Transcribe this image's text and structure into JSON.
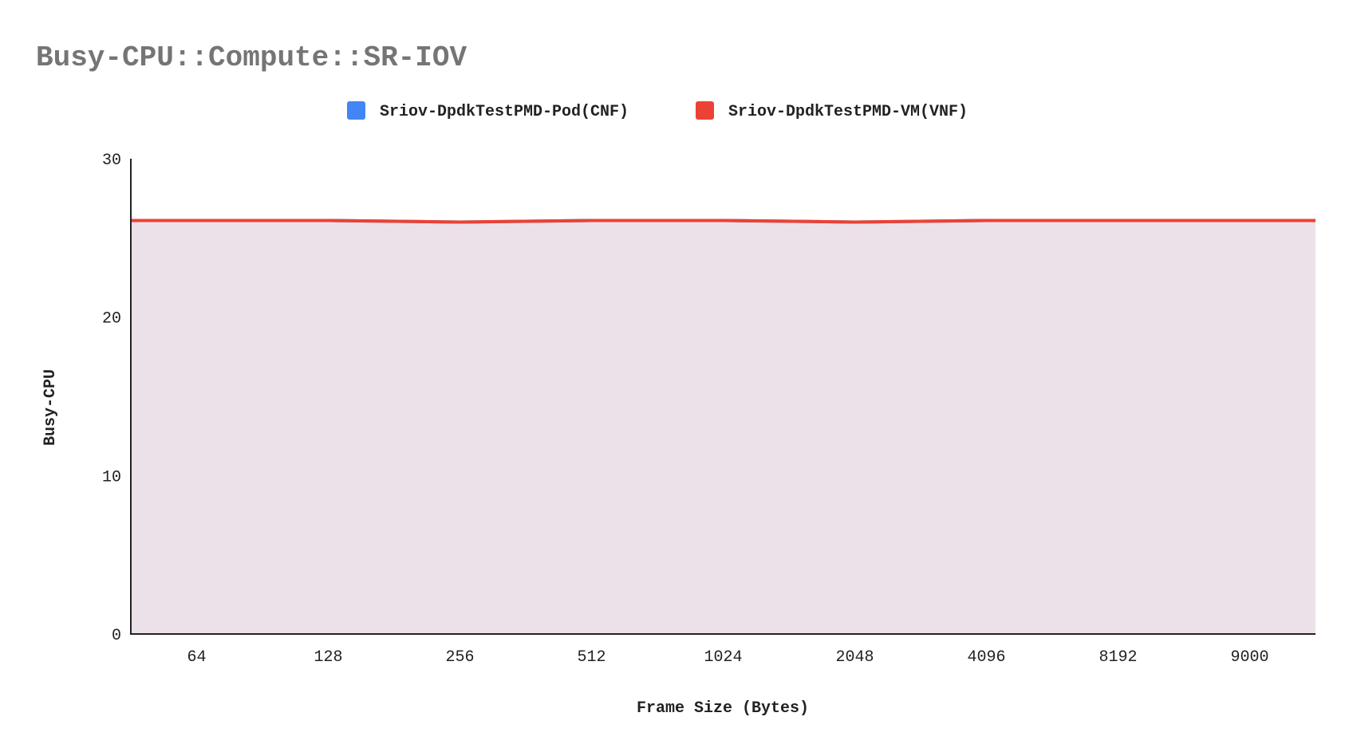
{
  "chart_data": {
    "type": "area",
    "title": "Busy-CPU::Compute::SR-IOV",
    "xlabel": "Frame Size (Bytes)",
    "ylabel": "Busy-CPU",
    "categories": [
      "64",
      "128",
      "256",
      "512",
      "1024",
      "2048",
      "4096",
      "8192",
      "9000"
    ],
    "ylim": [
      0,
      30
    ],
    "yticks": [
      0,
      10,
      20,
      30
    ],
    "grid": false,
    "legend_position": "top",
    "series": [
      {
        "name": "Sriov-DpdkTestPMD-Pod(CNF)",
        "color": "#4285f4",
        "values": [
          26.1,
          26.1,
          26.0,
          26.1,
          26.1,
          26.0,
          26.1,
          26.1,
          26.1
        ]
      },
      {
        "name": "Sriov-DpdkTestPMD-VM(VNF)",
        "color": "#ea4335",
        "values": [
          26.1,
          26.1,
          26.0,
          26.1,
          26.1,
          26.0,
          26.1,
          26.1,
          26.1
        ]
      }
    ]
  }
}
